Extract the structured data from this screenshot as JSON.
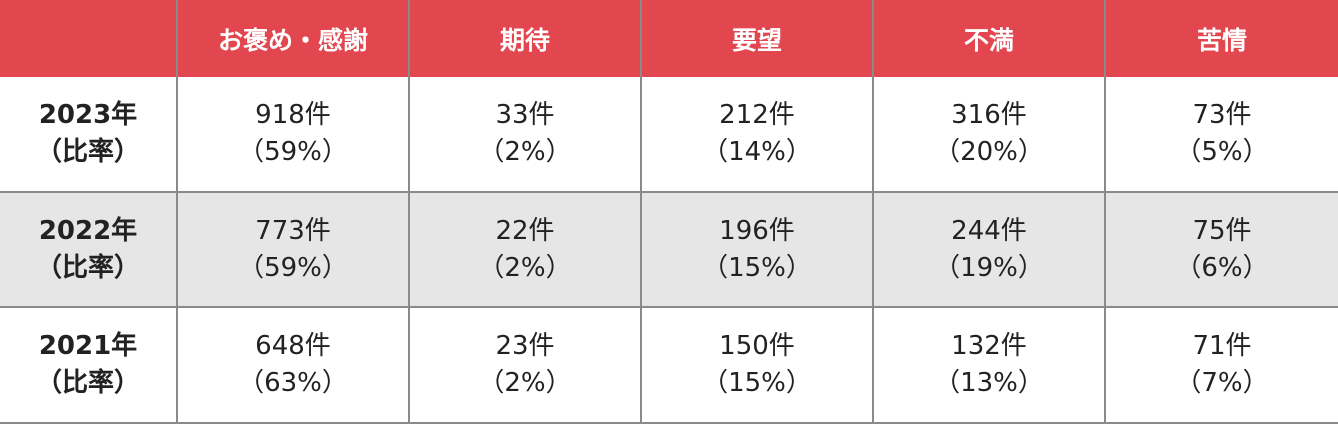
{
  "chart_data": {
    "type": "table",
    "columns": [
      "",
      "お褒め・感謝",
      "期待",
      "要望",
      "不満",
      "苦情"
    ],
    "rows": [
      {
        "year": "2023年",
        "ratio": "（比率）",
        "cells": [
          {
            "count": "918件",
            "pct": "（59%）"
          },
          {
            "count": "33件",
            "pct": "（2%）"
          },
          {
            "count": "212件",
            "pct": "（14%）"
          },
          {
            "count": "316件",
            "pct": "（20%）"
          },
          {
            "count": "73件",
            "pct": "（5%）"
          }
        ]
      },
      {
        "year": "2022年",
        "ratio": "（比率）",
        "cells": [
          {
            "count": "773件",
            "pct": "（59%）"
          },
          {
            "count": "22件",
            "pct": "（2%）"
          },
          {
            "count": "196件",
            "pct": "（15%）"
          },
          {
            "count": "244件",
            "pct": "（19%）"
          },
          {
            "count": "75件",
            "pct": "（6%）"
          }
        ]
      },
      {
        "year": "2021年",
        "ratio": "（比率）",
        "cells": [
          {
            "count": "648件",
            "pct": "（63%）"
          },
          {
            "count": "23件",
            "pct": "（2%）"
          },
          {
            "count": "150件",
            "pct": "（15%）"
          },
          {
            "count": "132件",
            "pct": "（13%）"
          },
          {
            "count": "71件",
            "pct": "（7%）"
          }
        ]
      }
    ]
  },
  "colors": {
    "header_bg": "#e2464f",
    "header_text": "#ffffff",
    "alt_row_bg": "#e6e6e6",
    "grid_line": "#8a8a8a",
    "body_text": "#222222"
  }
}
